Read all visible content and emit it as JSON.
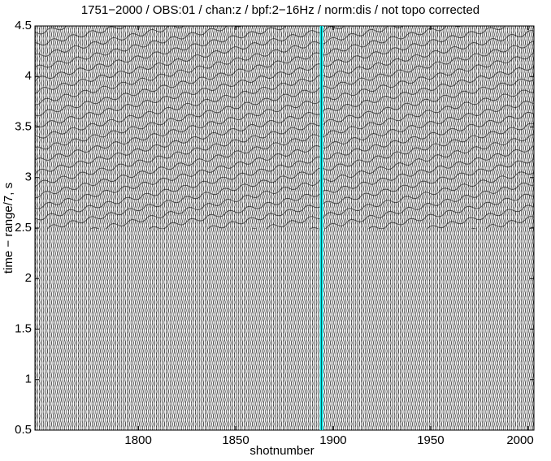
{
  "chart_data": {
    "type": "seismic",
    "title": "1751−2000 / OBS:01 / chan:z / bpf:2−16Hz / norm:dis / not topo corrected",
    "x_label": "shotnumber",
    "y_label": "time − range/7, s",
    "xlim": [
      1747,
      2003
    ],
    "xticks": [
      1800,
      1850,
      1900,
      1950,
      2000
    ],
    "ylim": [
      0.5,
      4.5
    ],
    "yticks": [
      0.5,
      1,
      1.5,
      2,
      2.5,
      3,
      3.5,
      4,
      4.5
    ],
    "highlight": {
      "x": 1894,
      "color": "#00e5e5"
    }
  }
}
